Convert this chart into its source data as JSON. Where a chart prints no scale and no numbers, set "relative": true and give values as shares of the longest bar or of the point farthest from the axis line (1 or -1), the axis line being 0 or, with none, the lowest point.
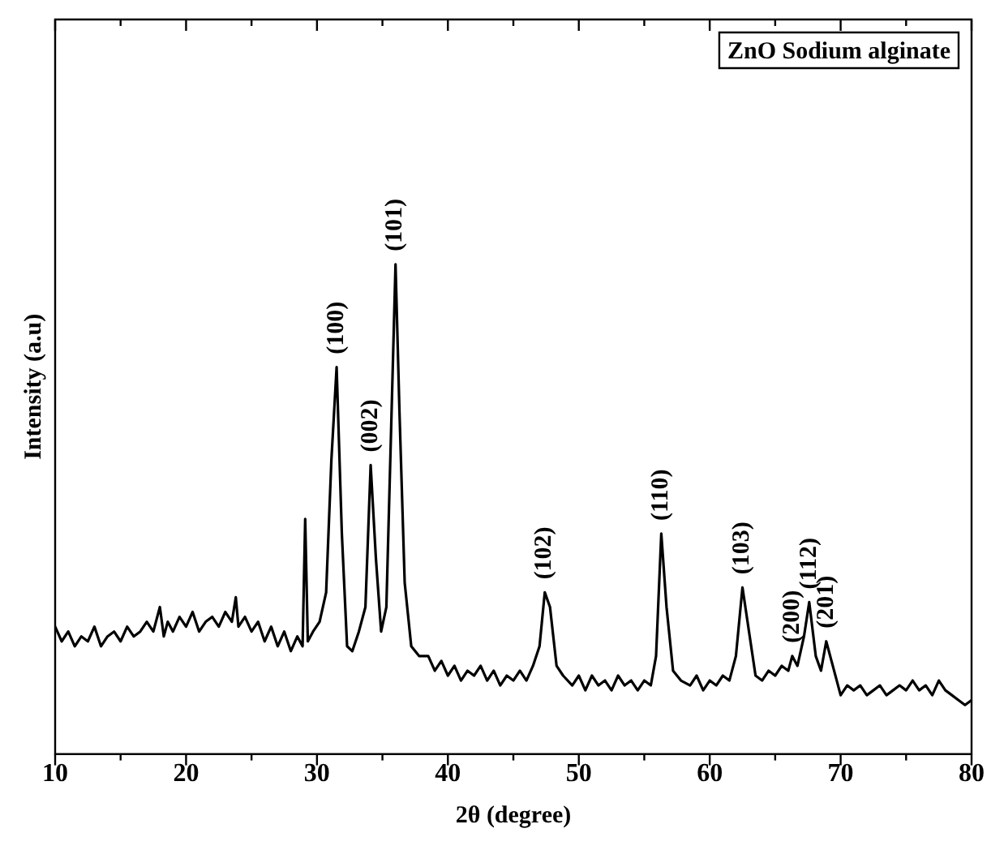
{
  "chart_data": {
    "type": "line",
    "relative": true,
    "xlabel": "2θ (degree)",
    "ylabel": "Intensity (a.u)",
    "xlim": [
      10,
      80
    ],
    "xticks": [
      10,
      {
        "value": 15,
        "label": null
      },
      20,
      {
        "value": 25,
        "label": null
      },
      30,
      {
        "value": 35,
        "label": null
      },
      40,
      {
        "value": 45,
        "label": null
      },
      50,
      {
        "value": 55,
        "label": null
      },
      60,
      {
        "value": 65,
        "label": null
      },
      70,
      {
        "value": 75,
        "label": null
      },
      80
    ],
    "grid": false,
    "legend": false,
    "marker": "none",
    "line_style": "solid",
    "series": [
      {
        "color": "#000000",
        "x": [
          10,
          10.5,
          11,
          11.5,
          12,
          12.5,
          13,
          13.5,
          14,
          14.5,
          15,
          15.5,
          16,
          16.5,
          17,
          17.5,
          18,
          18.3,
          18.6,
          19,
          19.5,
          20,
          20.5,
          21,
          21.5,
          22,
          22.5,
          23,
          23.5,
          23.8,
          24,
          24.5,
          25,
          25.5,
          26,
          26.5,
          27,
          27.5,
          28,
          28.5,
          28.9,
          29.1,
          29.3,
          29.7,
          30.2,
          30.7,
          31.1,
          31.5,
          31.9,
          32.3,
          32.7,
          33.2,
          33.7,
          34.1,
          34.5,
          34.9,
          35.3,
          35.7,
          36.0,
          36.3,
          36.7,
          37.2,
          37.8,
          38.5,
          39,
          39.5,
          40,
          40.5,
          41,
          41.5,
          42,
          42.5,
          43,
          43.5,
          44,
          44.5,
          45,
          45.5,
          46,
          46.5,
          47,
          47.4,
          47.8,
          48.3,
          48.8,
          49.5,
          50,
          50.5,
          51,
          51.5,
          52,
          52.5,
          53,
          53.5,
          54,
          54.5,
          55,
          55.5,
          55.9,
          56.3,
          56.7,
          57.2,
          57.8,
          58.5,
          59,
          59.5,
          60,
          60.5,
          61,
          61.5,
          62,
          62.5,
          63,
          63.5,
          64,
          64.5,
          65,
          65.5,
          66,
          66.3,
          66.7,
          67.2,
          67.6,
          68.1,
          68.5,
          68.9,
          69.4,
          70,
          70.5,
          71,
          71.5,
          72,
          72.5,
          73,
          73.5,
          74,
          74.5,
          75,
          75.5,
          76,
          76.5,
          77,
          77.5,
          78,
          78.5,
          79,
          79.5,
          80
        ],
        "values": [
          0.26,
          0.23,
          0.25,
          0.22,
          0.24,
          0.23,
          0.26,
          0.22,
          0.24,
          0.25,
          0.23,
          0.26,
          0.24,
          0.25,
          0.27,
          0.25,
          0.3,
          0.24,
          0.27,
          0.25,
          0.28,
          0.26,
          0.29,
          0.25,
          0.27,
          0.28,
          0.26,
          0.29,
          0.27,
          0.32,
          0.26,
          0.28,
          0.25,
          0.27,
          0.23,
          0.26,
          0.22,
          0.25,
          0.21,
          0.24,
          0.22,
          0.48,
          0.23,
          0.25,
          0.27,
          0.33,
          0.6,
          0.79,
          0.45,
          0.22,
          0.21,
          0.25,
          0.3,
          0.59,
          0.4,
          0.25,
          0.3,
          0.7,
          1.0,
          0.7,
          0.35,
          0.22,
          0.2,
          0.2,
          0.17,
          0.19,
          0.16,
          0.18,
          0.15,
          0.17,
          0.16,
          0.18,
          0.15,
          0.17,
          0.14,
          0.16,
          0.15,
          0.17,
          0.15,
          0.18,
          0.22,
          0.33,
          0.3,
          0.18,
          0.16,
          0.14,
          0.16,
          0.13,
          0.16,
          0.14,
          0.15,
          0.13,
          0.16,
          0.14,
          0.15,
          0.13,
          0.15,
          0.14,
          0.2,
          0.45,
          0.3,
          0.17,
          0.15,
          0.14,
          0.16,
          0.13,
          0.15,
          0.14,
          0.16,
          0.15,
          0.2,
          0.34,
          0.25,
          0.16,
          0.15,
          0.17,
          0.16,
          0.18,
          0.17,
          0.2,
          0.18,
          0.24,
          0.31,
          0.2,
          0.17,
          0.23,
          0.18,
          0.12,
          0.14,
          0.13,
          0.14,
          0.12,
          0.13,
          0.14,
          0.12,
          0.13,
          0.14,
          0.13,
          0.15,
          0.13,
          0.14,
          0.12,
          0.15,
          0.13,
          0.12,
          0.11,
          0.1,
          0.11
        ]
      }
    ],
    "annotations": [
      "ZnO Sodium alginate",
      {
        "text": "(100)",
        "x": 31.5,
        "y": 0.79
      },
      {
        "text": "(002)",
        "x": 34.1,
        "y": 0.59
      },
      {
        "text": "(101)",
        "x": 36.0,
        "y": 1.0
      },
      {
        "text": "(102)",
        "x": 47.4,
        "y": 0.33
      },
      {
        "text": "(110)",
        "x": 56.3,
        "y": 0.45
      },
      {
        "text": "(103)",
        "x": 62.5,
        "y": 0.34
      },
      {
        "text": "(200)",
        "x": 66.3,
        "y": 0.2
      },
      {
        "text": "(112)",
        "x": 67.6,
        "y": 0.31
      },
      {
        "text": "(201)",
        "x": 68.9,
        "y": 0.23
      }
    ]
  }
}
